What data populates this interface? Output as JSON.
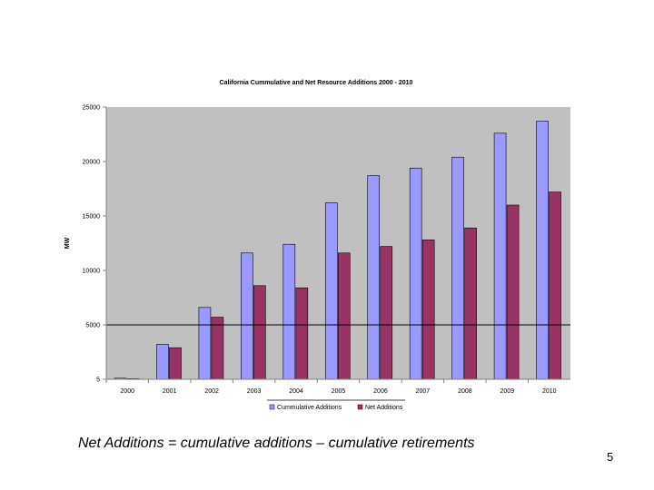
{
  "chart_data": {
    "type": "bar",
    "title": "California Cummulative and Net Resource Additions 2000 - 2010",
    "xlabel": "",
    "ylabel": "MW",
    "categories": [
      "2000",
      "2001",
      "2002",
      "2003",
      "2004",
      "2005",
      "2006",
      "2007",
      "2008",
      "2009",
      "2010"
    ],
    "series": [
      {
        "name": "Cummulative Additions",
        "values": [
          100,
          3200,
          6600,
          11600,
          12400,
          16200,
          18700,
          19400,
          20400,
          22600,
          23700
        ],
        "color": "#9999ff"
      },
      {
        "name": "Net Additions",
        "values": [
          50,
          2900,
          5700,
          8600,
          8400,
          11600,
          12200,
          12800,
          13900,
          16000,
          17200
        ],
        "color": "#993366"
      }
    ],
    "ylim": [
      0,
      25000
    ],
    "ytick_labels": [
      "25000",
      "20000",
      "15000",
      "10000",
      "5000",
      "5"
    ],
    "reference_line": 5000,
    "plot_background": "#c0c0c0",
    "legend": "bottom"
  },
  "caption": "Net Additions = cumulative additions – cumulative retirements",
  "slide_number": "5"
}
